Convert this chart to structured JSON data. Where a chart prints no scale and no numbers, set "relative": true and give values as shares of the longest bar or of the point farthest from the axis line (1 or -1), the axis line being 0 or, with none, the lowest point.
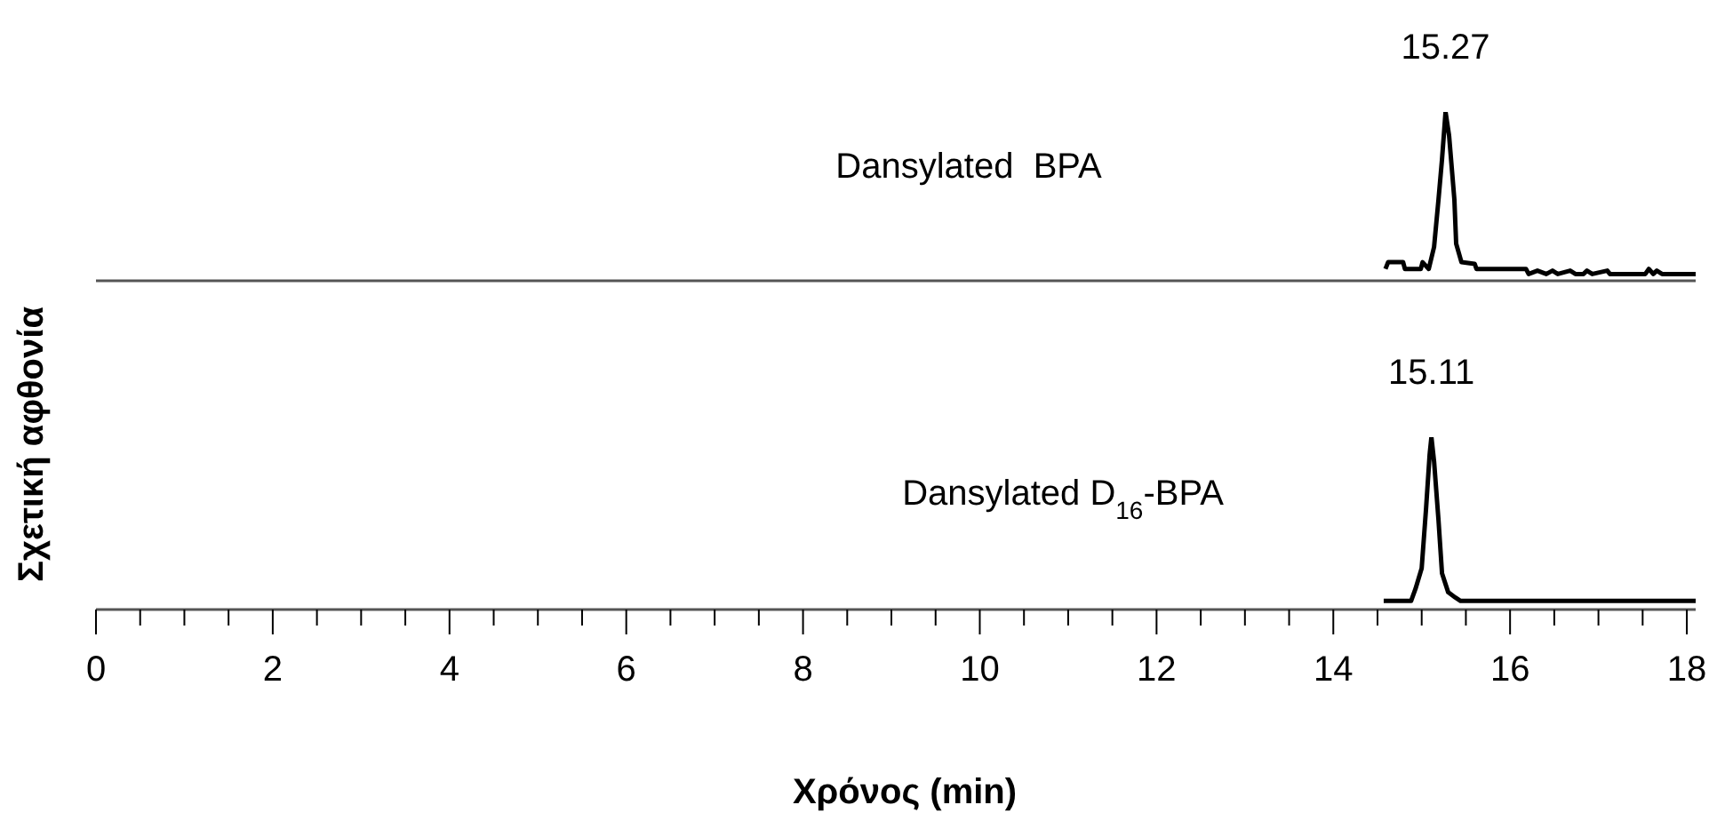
{
  "chart_data": [
    {
      "type": "line",
      "relative": true,
      "ylabel": "Σχετική αφθονία",
      "xlim": [
        0,
        18.1
      ],
      "tick_labels": false,
      "series": [
        {
          "name": "Dansylated  BPA",
          "color": "#000000",
          "x": [
            14.59,
            14.62,
            14.79,
            14.81,
            14.99,
            15.01,
            15.08,
            15.14,
            15.19,
            15.23,
            15.27,
            15.31,
            15.37,
            15.39,
            15.45,
            15.6,
            15.62,
            16.18,
            16.21,
            16.31,
            16.41,
            16.48,
            16.54,
            16.68,
            16.74,
            16.83,
            16.87,
            16.93,
            17.1,
            17.13,
            17.53,
            17.57,
            17.62,
            17.66,
            17.72,
            18.1
          ],
          "values": [
            0.07,
            0.11,
            0.11,
            0.07,
            0.07,
            0.11,
            0.07,
            0.2,
            0.48,
            0.72,
            1,
            0.86,
            0.48,
            0.22,
            0.11,
            0.1,
            0.07,
            0.07,
            0.04,
            0.06,
            0.04,
            0.06,
            0.04,
            0.06,
            0.04,
            0.04,
            0.06,
            0.04,
            0.06,
            0.04,
            0.04,
            0.07,
            0.04,
            0.06,
            0.04,
            0.04
          ]
        }
      ],
      "annotations": [
        {
          "text": "15.27",
          "x": 15.27,
          "y": 1
        }
      ]
    },
    {
      "type": "line",
      "relative": true,
      "xlabel": "Χρόνος (min)",
      "xlim": [
        0,
        18.1
      ],
      "tick_labels": "x",
      "xticks": [
        0,
        {
          "value": 0.5,
          "label": null
        },
        {
          "value": 1,
          "label": null
        },
        {
          "value": 1.5,
          "label": null
        },
        2,
        {
          "value": 2.5,
          "label": null
        },
        {
          "value": 3,
          "label": null
        },
        {
          "value": 3.5,
          "label": null
        },
        4,
        {
          "value": 4.5,
          "label": null
        },
        {
          "value": 5,
          "label": null
        },
        {
          "value": 5.5,
          "label": null
        },
        6,
        {
          "value": 6.5,
          "label": null
        },
        {
          "value": 7,
          "label": null
        },
        {
          "value": 7.5,
          "label": null
        },
        8,
        {
          "value": 8.5,
          "label": null
        },
        {
          "value": 9,
          "label": null
        },
        {
          "value": 9.5,
          "label": null
        },
        10,
        {
          "value": 10.5,
          "label": null
        },
        {
          "value": 11,
          "label": null
        },
        {
          "value": 11.5,
          "label": null
        },
        12,
        {
          "value": 12.5,
          "label": null
        },
        {
          "value": 13,
          "label": null
        },
        {
          "value": 13.5,
          "label": null
        },
        14,
        {
          "value": 14.5,
          "label": null
        },
        {
          "value": 15,
          "label": null
        },
        {
          "value": 15.5,
          "label": null
        },
        16,
        {
          "value": 16.5,
          "label": null
        },
        {
          "value": 17,
          "label": null
        },
        {
          "value": 17.5,
          "label": null
        },
        18
      ],
      "series": [
        {
          "name": "Dansylated D$_{16}$-BPA",
          "color": "#000000",
          "x": [
            14.57,
            14.88,
            14.93,
            15.0,
            15.05,
            15.09,
            15.11,
            15.14,
            15.19,
            15.23,
            15.3,
            15.38,
            15.44,
            18.1
          ],
          "values": [
            0.05,
            0.05,
            0.12,
            0.24,
            0.59,
            0.9,
            1,
            0.86,
            0.52,
            0.21,
            0.1,
            0.07,
            0.05,
            0.05
          ]
        }
      ],
      "annotations": [
        {
          "text": "15.11",
          "x": 15.11,
          "y": 1
        }
      ]
    }
  ]
}
